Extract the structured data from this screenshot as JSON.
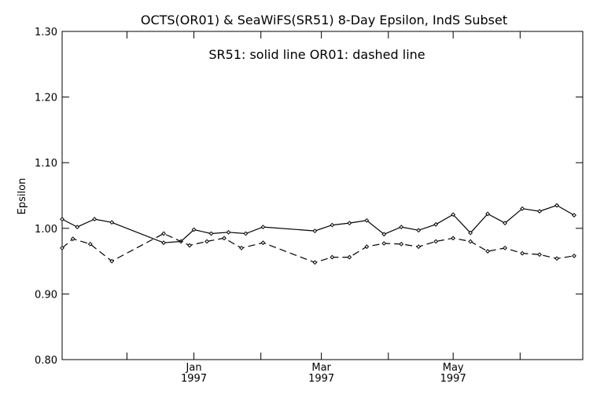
{
  "chart_data": {
    "type": "line",
    "title": "OCTS(OR01) & SeaWiFS(SR51) 8-Day Epsilon, IndS Subset",
    "annotation": "SR51: solid line   OR01: dashed line",
    "ylabel": "Epsilon",
    "xlabel": "",
    "ylim": [
      0.8,
      1.3
    ],
    "y_ticks": [
      "0.80",
      "0.90",
      "1.00",
      "1.10",
      "1.20",
      "1.30"
    ],
    "x_range": [
      "1996-11-01",
      "1997-06-30"
    ],
    "x_ticks": [
      {
        "date": "1996-11-01",
        "label": "",
        "year": ""
      },
      {
        "date": "1996-12-01",
        "label": "",
        "year": ""
      },
      {
        "date": "1997-01-01",
        "label": "Jan",
        "year": "1997"
      },
      {
        "date": "1997-02-01",
        "label": "",
        "year": ""
      },
      {
        "date": "1997-03-01",
        "label": "Mar",
        "year": "1997"
      },
      {
        "date": "1997-04-01",
        "label": "",
        "year": ""
      },
      {
        "date": "1997-05-01",
        "label": "May",
        "year": "1997"
      },
      {
        "date": "1997-06-01",
        "label": "",
        "year": ""
      }
    ],
    "series": [
      {
        "name": "SR51",
        "style": "solid",
        "color": "#000000",
        "points": [
          {
            "x": "1996-11-01",
            "y": 1.014
          },
          {
            "x": "1996-11-08",
            "y": 1.002
          },
          {
            "x": "1996-11-16",
            "y": 1.014
          },
          {
            "x": "1996-11-24",
            "y": 1.009
          },
          {
            "x": "1996-12-18",
            "y": 0.978
          },
          {
            "x": "1996-12-26",
            "y": 0.98
          },
          {
            "x": "1997-01-01",
            "y": 0.998
          },
          {
            "x": "1997-01-09",
            "y": 0.992
          },
          {
            "x": "1997-01-17",
            "y": 0.994
          },
          {
            "x": "1997-01-25",
            "y": 0.992
          },
          {
            "x": "1997-02-02",
            "y": 1.002
          },
          {
            "x": "1997-02-26",
            "y": 0.996
          },
          {
            "x": "1997-03-06",
            "y": 1.005
          },
          {
            "x": "1997-03-14",
            "y": 1.008
          },
          {
            "x": "1997-03-22",
            "y": 1.012
          },
          {
            "x": "1997-03-30",
            "y": 0.991
          },
          {
            "x": "1997-04-07",
            "y": 1.002
          },
          {
            "x": "1997-04-15",
            "y": 0.997
          },
          {
            "x": "1997-04-23",
            "y": 1.006
          },
          {
            "x": "1997-05-01",
            "y": 1.021
          },
          {
            "x": "1997-05-09",
            "y": 0.993
          },
          {
            "x": "1997-05-17",
            "y": 1.022
          },
          {
            "x": "1997-05-25",
            "y": 1.008
          },
          {
            "x": "1997-06-02",
            "y": 1.03
          },
          {
            "x": "1997-06-10",
            "y": 1.026
          },
          {
            "x": "1997-06-18",
            "y": 1.035
          },
          {
            "x": "1997-06-26",
            "y": 1.02
          }
        ]
      },
      {
        "name": "OR01",
        "style": "dashed",
        "color": "#000000",
        "points": [
          {
            "x": "1996-11-01",
            "y": 0.97
          },
          {
            "x": "1996-11-06",
            "y": 0.984
          },
          {
            "x": "1996-11-14",
            "y": 0.976
          },
          {
            "x": "1996-11-24",
            "y": 0.95
          },
          {
            "x": "1996-12-18",
            "y": 0.992
          },
          {
            "x": "1996-12-30",
            "y": 0.974
          },
          {
            "x": "1997-01-07",
            "y": 0.98
          },
          {
            "x": "1997-01-15",
            "y": 0.985
          },
          {
            "x": "1997-01-23",
            "y": 0.97
          },
          {
            "x": "1997-02-02",
            "y": 0.978
          },
          {
            "x": "1997-02-26",
            "y": 0.948
          },
          {
            "x": "1997-03-06",
            "y": 0.956
          },
          {
            "x": "1997-03-14",
            "y": 0.956
          },
          {
            "x": "1997-03-22",
            "y": 0.972
          },
          {
            "x": "1997-03-30",
            "y": 0.977
          },
          {
            "x": "1997-04-07",
            "y": 0.976
          },
          {
            "x": "1997-04-15",
            "y": 0.972
          },
          {
            "x": "1997-04-23",
            "y": 0.98
          },
          {
            "x": "1997-05-01",
            "y": 0.985
          },
          {
            "x": "1997-05-09",
            "y": 0.98
          },
          {
            "x": "1997-05-17",
            "y": 0.965
          },
          {
            "x": "1997-05-25",
            "y": 0.97
          },
          {
            "x": "1997-06-02",
            "y": 0.962
          },
          {
            "x": "1997-06-10",
            "y": 0.96
          },
          {
            "x": "1997-06-18",
            "y": 0.954
          },
          {
            "x": "1997-06-26",
            "y": 0.958
          }
        ]
      }
    ],
    "grid": false,
    "legend": "top-center annotation"
  }
}
